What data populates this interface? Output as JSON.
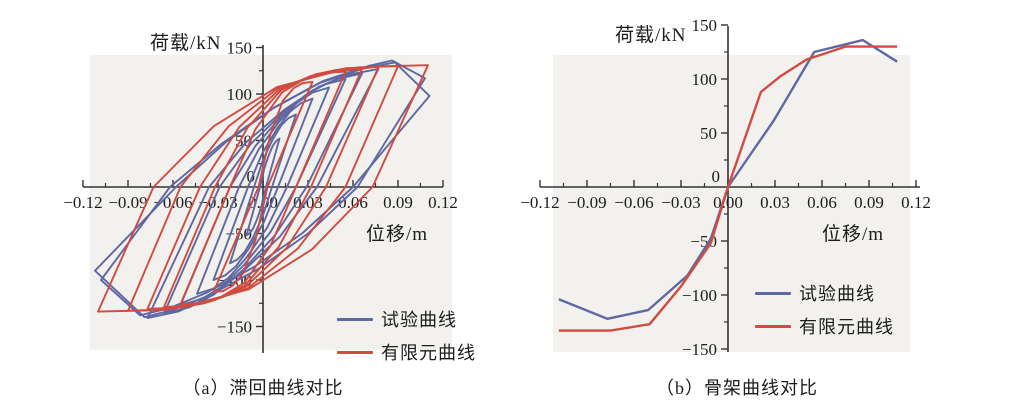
{
  "colors": {
    "test_curve": "#5e68a2",
    "fe_curve": "#d14b41",
    "axis": "#333333",
    "panel": "#f2f1ee",
    "text": "#1c1c1c"
  },
  "chart_a": {
    "y_axis_title": "荷载/kN",
    "x_axis_title": "位移/m",
    "caption": "（a）滞回曲线对比",
    "legend": {
      "test": "试验曲线",
      "fe": "有限元曲线"
    }
  },
  "chart_b": {
    "y_axis_title": "荷载/kN",
    "x_axis_title": "位移/m",
    "caption": "（b）骨架曲线对比",
    "legend": {
      "test": "试验曲线",
      "fe": "有限元曲线"
    }
  },
  "chart_data": [
    {
      "type": "line",
      "title": "（a）滞回曲线对比",
      "xlabel": "位移/m",
      "ylabel": "荷载/kN",
      "xlim": [
        -0.12,
        0.12
      ],
      "ylim": [
        -150,
        150
      ],
      "grid": false,
      "legend_position": "lower-right",
      "x_ticks": [
        -0.12,
        -0.09,
        -0.06,
        -0.03,
        0,
        0.03,
        0.06,
        0.09,
        0.12
      ],
      "x_tick_labels": [
        "−0.12",
        "−0.09",
        "−0.06",
        "−0.03",
        "0.00",
        "0.03",
        "0.06",
        "0.09",
        "0.12"
      ],
      "x_minor_ticks": [
        -0.105,
        -0.075,
        -0.045,
        -0.015,
        0.015,
        0.045,
        0.075,
        0.105
      ],
      "y_ticks": [
        150,
        100,
        50,
        0,
        -50,
        -100,
        -150
      ],
      "y_tick_labels": [
        "150",
        "100",
        "50",
        "0",
        "−50",
        "−100",
        "−150"
      ],
      "y_minor_ticks": [
        125,
        75,
        25,
        -25,
        -75,
        -125
      ],
      "series": [
        {
          "name": "试验曲线",
          "color_key": "test_curve",
          "kind": "hysteresis",
          "cycles": [
            {
              "amp": 0.011,
              "peak_pos": 52,
              "peak_neg": -52,
              "unload": 0.009
            },
            {
              "amp": 0.022,
              "peak_pos": 78,
              "peak_neg": -82,
              "unload": 0.016
            },
            {
              "amp": 0.033,
              "peak_pos": 95,
              "peak_neg": -100,
              "unload": 0.023
            },
            {
              "amp": 0.044,
              "peak_pos": 107,
              "peak_neg": -115,
              "unload": 0.028
            },
            {
              "amp": 0.055,
              "peak_pos": 116,
              "peak_neg": -127,
              "unload": 0.033
            },
            {
              "amp": 0.066,
              "peak_pos": 122,
              "peak_neg": -136,
              "unload": 0.037
            },
            {
              "amp": 0.077,
              "peak_pos": 127,
              "peak_neg": -141,
              "unload": 0.041
            },
            {
              "points": [
                [
                  -0.058,
                  0
                ],
                [
                  -0.025,
                  48
                ],
                [
                  0.008,
                  86
                ],
                [
                  0.04,
                  114
                ],
                [
                  0.07,
                  130
                ],
                [
                  0.086,
                  136
                ],
                [
                  0.108,
                  117
                ],
                [
                  0.063,
                  0
                ],
                [
                  0.03,
                  -50
                ],
                [
                  -0.003,
                  -88
                ],
                [
                  -0.035,
                  -116
                ],
                [
                  -0.06,
                  -132
                ],
                [
                  -0.079,
                  -140
                ],
                [
                  -0.112,
                  -90
                ],
                [
                  -0.058,
                  0
                ]
              ]
            },
            {
              "points": [
                [
                  -0.062,
                  0
                ],
                [
                  -0.028,
                  46
                ],
                [
                  0.006,
                  84
                ],
                [
                  0.038,
                  112
                ],
                [
                  0.068,
                  128
                ],
                [
                  0.088,
                  134
                ],
                [
                  0.111,
                  98
                ],
                [
                  0.06,
                  0
                ],
                [
                  0.026,
                  -50
                ],
                [
                  -0.006,
                  -86
                ],
                [
                  -0.038,
                  -114
                ],
                [
                  -0.062,
                  -130
                ],
                [
                  -0.082,
                  -138
                ],
                [
                  -0.108,
                  -100
                ],
                [
                  -0.062,
                  0
                ]
              ]
            }
          ]
        },
        {
          "name": "有限元曲线",
          "color_key": "fe_curve",
          "kind": "hysteresis",
          "cycles": [
            {
              "amp": 0.033,
              "peak_pos": 113,
              "peak_neg": -113,
              "unload": 0.03
            },
            {
              "amp": 0.055,
              "peak_pos": 124,
              "peak_neg": -126,
              "unload": 0.033
            },
            {
              "amp": 0.066,
              "peak_pos": 127,
              "peak_neg": -129,
              "unload": 0.034
            },
            {
              "amp": 0.077,
              "peak_pos": 129,
              "peak_neg": -131,
              "unload": 0.035
            },
            {
              "amp": 0.09,
              "peak_pos": 130,
              "peak_neg": -133,
              "unload": 0.035
            },
            {
              "amp": 0.11,
              "peak_pos": 131,
              "peak_neg": -134,
              "unload": 0.037
            }
          ]
        }
      ]
    },
    {
      "type": "line",
      "title": "（b）骨架曲线对比",
      "xlabel": "位移/m",
      "ylabel": "荷载/kN",
      "xlim": [
        -0.12,
        0.12
      ],
      "ylim": [
        -150,
        150
      ],
      "grid": false,
      "legend_position": "lower-right",
      "x_ticks": [
        -0.12,
        -0.09,
        -0.06,
        -0.03,
        0,
        0.03,
        0.06,
        0.09,
        0.12
      ],
      "x_tick_labels": [
        "−0.12",
        "−0.09",
        "−0.06",
        "−0.03",
        "0.00",
        "0.03",
        "0.06",
        "0.09",
        "0.12"
      ],
      "x_minor_ticks": [
        -0.105,
        -0.075,
        -0.045,
        -0.015,
        0.015,
        0.045,
        0.075,
        0.105
      ],
      "y_ticks": [
        150,
        100,
        50,
        0,
        -50,
        -100,
        -150
      ],
      "y_tick_labels": [
        "150",
        "100",
        "50",
        "0",
        "−50",
        "−100",
        "−150"
      ],
      "y_minor_ticks": [
        125,
        75,
        25,
        -25,
        -75,
        -125
      ],
      "series": [
        {
          "name": "试验曲线",
          "color_key": "test_curve",
          "kind": "skeleton",
          "points": [
            [
              -0.108,
              -104
            ],
            [
              -0.077,
              -122
            ],
            [
              -0.051,
              -114
            ],
            [
              -0.026,
              -82
            ],
            [
              -0.011,
              -48
            ],
            [
              0,
              0
            ],
            [
              0.029,
              61
            ],
            [
              0.055,
              125
            ],
            [
              0.086,
              136
            ],
            [
              0.108,
              116
            ]
          ]
        },
        {
          "name": "有限元曲线",
          "color_key": "fe_curve",
          "kind": "skeleton",
          "points": [
            [
              -0.108,
              -133
            ],
            [
              -0.075,
              -133
            ],
            [
              -0.05,
              -127
            ],
            [
              -0.03,
              -92
            ],
            [
              -0.011,
              -52
            ],
            [
              0,
              0
            ],
            [
              0.021,
              88
            ],
            [
              0.033,
              102
            ],
            [
              0.05,
              118
            ],
            [
              0.075,
              130
            ],
            [
              0.108,
              130
            ]
          ]
        }
      ]
    }
  ]
}
